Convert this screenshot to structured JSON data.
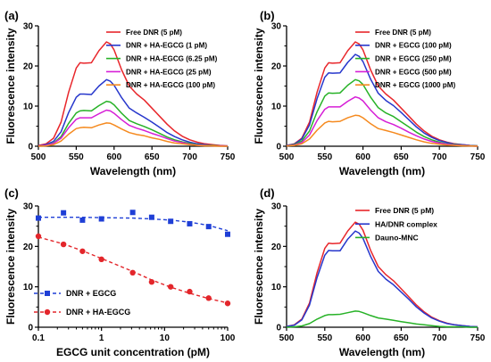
{
  "chart_data": [
    {
      "id": "a",
      "panel_label": "(a)",
      "type": "line",
      "xlabel": "Wavelength (nm)",
      "ylabel": "Fluorescence intensity",
      "xlim": [
        500,
        750
      ],
      "ylim": [
        0,
        30
      ],
      "x_ticks": [
        500,
        550,
        600,
        650,
        700,
        750
      ],
      "y_ticks": [
        0,
        10,
        20,
        30
      ],
      "legend_position": "top-right",
      "x": [
        500,
        510,
        520,
        530,
        540,
        550,
        555,
        560,
        570,
        580,
        590,
        595,
        600,
        610,
        620,
        630,
        640,
        650,
        660,
        670,
        680,
        690,
        700,
        710,
        720,
        730,
        740,
        750
      ],
      "series": [
        {
          "name": "Free DNR (5 pM)",
          "color": "#e8262b",
          "values": [
            0.2,
            0.6,
            2.0,
            6.0,
            13.5,
            19.5,
            20.8,
            20.7,
            20.8,
            23.8,
            26.0,
            25.5,
            24.0,
            19.0,
            15.0,
            13.0,
            11.5,
            9.5,
            7.5,
            5.5,
            3.8,
            2.5,
            1.6,
            1.0,
            0.6,
            0.4,
            0.2,
            0.1
          ]
        },
        {
          "name": "DNR + HA-EGCG (1 pM)",
          "color": "#2737cc",
          "values": [
            0.1,
            0.4,
            1.2,
            3.6,
            8.4,
            12.2,
            13.0,
            13.0,
            12.9,
            15.0,
            16.6,
            16.2,
            15.2,
            12.1,
            9.5,
            8.3,
            7.2,
            6.0,
            4.7,
            3.4,
            2.4,
            1.6,
            1.0,
            0.6,
            0.4,
            0.2,
            0.1,
            0.1
          ]
        },
        {
          "name": "DNR + HA-EGCG (6.25 pM)",
          "color": "#27b227",
          "values": [
            0.1,
            0.2,
            0.8,
            2.4,
            5.7,
            8.3,
            8.8,
            8.9,
            8.8,
            10.1,
            11.2,
            11.0,
            10.3,
            8.2,
            6.4,
            5.6,
            4.9,
            4.1,
            3.2,
            2.3,
            1.6,
            1.1,
            0.7,
            0.4,
            0.3,
            0.2,
            0.1,
            0.0
          ]
        },
        {
          "name": "DNR + HA-EGCG (25 pM)",
          "color": "#d61ed6",
          "values": [
            0.1,
            0.2,
            0.7,
            2.0,
            4.6,
            6.7,
            7.1,
            7.1,
            7.1,
            8.1,
            9.0,
            8.8,
            8.2,
            6.6,
            5.2,
            4.5,
            3.9,
            3.2,
            2.6,
            1.9,
            1.3,
            0.9,
            0.5,
            0.3,
            0.2,
            0.1,
            0.1,
            0.0
          ]
        },
        {
          "name": "DNR + HA-EGCG (100 pM)",
          "color": "#f58a1f",
          "values": [
            0.0,
            0.1,
            0.4,
            1.3,
            3.0,
            4.4,
            4.6,
            4.7,
            4.6,
            5.3,
            5.8,
            5.7,
            5.3,
            4.3,
            3.4,
            2.9,
            2.6,
            2.1,
            1.7,
            1.2,
            0.8,
            0.6,
            0.4,
            0.2,
            0.1,
            0.1,
            0.0,
            0.0
          ]
        }
      ]
    },
    {
      "id": "b",
      "panel_label": "(b)",
      "type": "line",
      "xlabel": "Wavelength (nm)",
      "ylabel": "Fluorescence intensity",
      "xlim": [
        500,
        750
      ],
      "ylim": [
        0,
        30
      ],
      "x_ticks": [
        500,
        550,
        600,
        650,
        700,
        750
      ],
      "y_ticks": [
        0,
        10,
        20,
        30
      ],
      "legend_position": "top-right",
      "x": [
        500,
        510,
        520,
        530,
        540,
        550,
        555,
        560,
        570,
        580,
        590,
        595,
        600,
        610,
        620,
        630,
        640,
        650,
        660,
        670,
        680,
        690,
        700,
        710,
        720,
        730,
        740,
        750
      ],
      "series": [
        {
          "name": "Free DNR (5 pM)",
          "color": "#e8262b",
          "values": [
            0.2,
            0.6,
            2.0,
            6.0,
            13.5,
            19.5,
            20.8,
            20.7,
            20.8,
            23.8,
            26.0,
            25.5,
            24.0,
            19.0,
            15.0,
            13.0,
            11.5,
            9.5,
            7.5,
            5.5,
            3.8,
            2.5,
            1.6,
            1.0,
            0.6,
            0.4,
            0.2,
            0.1
          ]
        },
        {
          "name": "DNR + EGCG (100 pM)",
          "color": "#2737cc",
          "values": [
            0.2,
            0.5,
            1.8,
            5.3,
            11.9,
            17.2,
            18.3,
            18.2,
            18.3,
            20.9,
            22.9,
            22.4,
            21.1,
            16.7,
            13.2,
            11.4,
            10.1,
            8.4,
            6.6,
            4.8,
            3.3,
            2.2,
            1.4,
            0.9,
            0.5,
            0.4,
            0.2,
            0.1
          ]
        },
        {
          "name": "DNR + EGCG (250 pM)",
          "color": "#27b227",
          "values": [
            0.1,
            0.4,
            1.3,
            3.8,
            8.6,
            12.5,
            13.3,
            13.2,
            13.3,
            15.2,
            16.6,
            16.3,
            15.4,
            12.2,
            9.6,
            8.3,
            7.4,
            6.1,
            4.8,
            3.5,
            2.4,
            1.6,
            1.0,
            0.6,
            0.4,
            0.3,
            0.1,
            0.1
          ]
        },
        {
          "name": "DNR + EGCG (500 pM)",
          "color": "#d61ed6",
          "values": [
            0.1,
            0.3,
            0.9,
            2.8,
            6.4,
            9.2,
            9.8,
            9.8,
            9.8,
            11.2,
            12.3,
            12.0,
            11.3,
            9.0,
            7.1,
            6.1,
            5.4,
            4.5,
            3.5,
            2.6,
            1.8,
            1.2,
            0.8,
            0.5,
            0.3,
            0.2,
            0.1,
            0.0
          ]
        },
        {
          "name": "DNR + EGCG (1000 pM)",
          "color": "#f58a1f",
          "values": [
            0.1,
            0.2,
            0.6,
            1.8,
            4.0,
            5.8,
            6.2,
            6.1,
            6.2,
            7.1,
            7.7,
            7.6,
            7.1,
            5.6,
            4.4,
            3.9,
            3.4,
            2.8,
            2.2,
            1.6,
            1.1,
            0.7,
            0.5,
            0.3,
            0.2,
            0.1,
            0.1,
            0.0
          ]
        }
      ]
    },
    {
      "id": "c",
      "panel_label": "(c)",
      "type": "scatter",
      "xscale": "log",
      "xlabel": "EGCG unit concentration (pM)",
      "ylabel": "Fluorescence intensity",
      "xlim": [
        0.1,
        100
      ],
      "ylim": [
        0,
        30
      ],
      "x_ticks": [
        0.1,
        1,
        10,
        100
      ],
      "x_tick_labels": [
        "0.1",
        "1",
        "10",
        "100"
      ],
      "y_ticks": [
        0,
        10,
        20,
        30
      ],
      "legend_position": "bottom-left",
      "series": [
        {
          "name": "DNR + EGCG",
          "color": "#1f3fd6",
          "marker": "square",
          "x": [
            0.1,
            0.25,
            0.5,
            1,
            3.125,
            6.25,
            12.5,
            25,
            50,
            100
          ],
          "values": [
            27.0,
            28.3,
            26.5,
            26.8,
            28.4,
            27.2,
            26.2,
            25.6,
            24.9,
            23.0
          ],
          "fit": [
            27.2,
            27.2,
            27.2,
            27.1,
            27.0,
            26.8,
            26.5,
            26.0,
            25.2,
            23.9
          ]
        },
        {
          "name": "DNR + HA-EGCG",
          "color": "#e3262b",
          "marker": "circle",
          "x": [
            0.1,
            0.25,
            0.5,
            1,
            3.125,
            6.25,
            12.5,
            25,
            50,
            100
          ],
          "values": [
            22.5,
            20.5,
            18.8,
            16.8,
            13.5,
            11.2,
            10.0,
            8.8,
            7.2,
            5.9
          ],
          "fit": [
            22.3,
            20.6,
            18.9,
            17.0,
            13.8,
            11.7,
            9.9,
            8.4,
            7.1,
            6.0
          ]
        }
      ]
    },
    {
      "id": "d",
      "panel_label": "(d)",
      "type": "line",
      "xlabel": "Wavelength (nm)",
      "ylabel": "Fluorescence intensity",
      "xlim": [
        500,
        750
      ],
      "ylim": [
        0,
        30
      ],
      "x_ticks": [
        500,
        550,
        600,
        650,
        700,
        750
      ],
      "y_ticks": [
        0,
        10,
        20,
        30
      ],
      "legend_position": "top-right",
      "x": [
        500,
        510,
        520,
        530,
        540,
        550,
        555,
        560,
        570,
        580,
        590,
        595,
        600,
        610,
        620,
        630,
        640,
        650,
        660,
        670,
        680,
        690,
        700,
        710,
        720,
        730,
        740,
        750
      ],
      "series": [
        {
          "name": "Free DNR (5 pM)",
          "color": "#e8262b",
          "values": [
            0.2,
            0.6,
            2.0,
            6.0,
            13.5,
            19.5,
            20.8,
            20.7,
            20.8,
            23.8,
            26.0,
            25.5,
            24.0,
            19.0,
            15.0,
            13.0,
            11.5,
            9.5,
            7.5,
            5.5,
            3.8,
            2.5,
            1.6,
            1.0,
            0.6,
            0.4,
            0.2,
            0.1
          ]
        },
        {
          "name": "HA/DNR complex",
          "color": "#2737cc",
          "values": [
            0.2,
            0.5,
            1.8,
            5.5,
            12.3,
            17.8,
            19.0,
            18.9,
            18.9,
            21.8,
            23.8,
            23.3,
            22.0,
            17.5,
            13.8,
            11.9,
            10.5,
            8.7,
            6.9,
            5.0,
            3.5,
            2.3,
            1.5,
            0.9,
            0.6,
            0.4,
            0.2,
            0.1
          ]
        },
        {
          "name": "Dauno-MNC",
          "color": "#27b227",
          "values": [
            0.0,
            0.1,
            0.3,
            0.9,
            2.0,
            2.9,
            3.1,
            3.1,
            3.2,
            3.6,
            4.0,
            3.9,
            3.6,
            2.9,
            2.3,
            2.0,
            1.7,
            1.4,
            1.1,
            0.8,
            0.6,
            0.4,
            0.2,
            0.1,
            0.1,
            0.1,
            0.0,
            0.0
          ]
        }
      ]
    }
  ]
}
